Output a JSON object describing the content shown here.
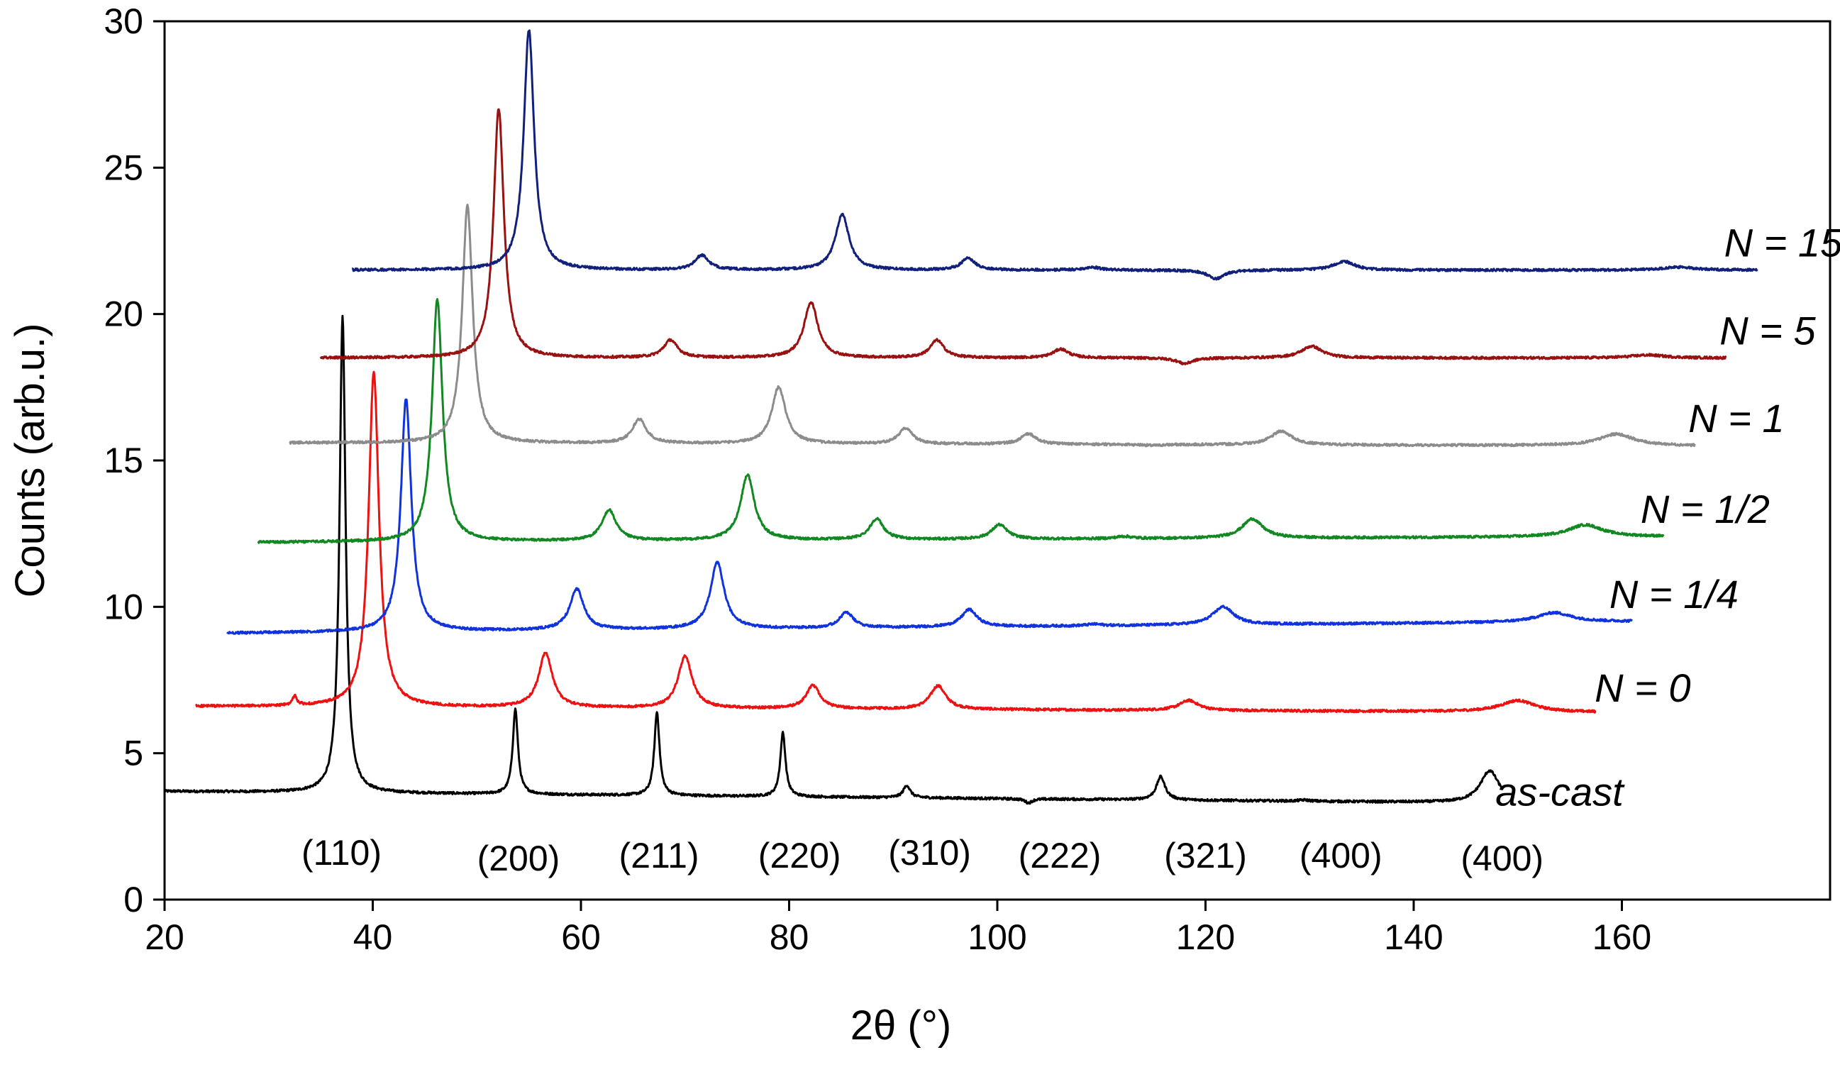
{
  "chart_data": {
    "type": "line",
    "title": "",
    "xlabel": "2θ (°)",
    "ylabel": "Counts (arb.u.)",
    "xlim": [
      20,
      180
    ],
    "ylim": [
      0,
      30
    ],
    "xticks": [
      20,
      40,
      60,
      80,
      100,
      120,
      140,
      160
    ],
    "xtick_labels": [
      "20",
      "40",
      "60",
      "80",
      "100",
      "120",
      "140",
      "160"
    ],
    "yticks": [
      0,
      5,
      10,
      15,
      20,
      25,
      30
    ],
    "ytick_labels": [
      "0",
      "5",
      "10",
      "15",
      "20",
      "25",
      "30"
    ],
    "grid": false,
    "annotations": [
      {
        "text": "(110)",
        "x": 37,
        "y": 1.6
      },
      {
        "text": "(200)",
        "x": 54,
        "y": 1.4
      },
      {
        "text": "(211)",
        "x": 67.5,
        "y": 1.5
      },
      {
        "text": "(220)",
        "x": 81,
        "y": 1.5
      },
      {
        "text": "(310)",
        "x": 93.5,
        "y": 1.6
      },
      {
        "text": "(222)",
        "x": 106,
        "y": 1.5
      },
      {
        "text": "(321)",
        "x": 120,
        "y": 1.5
      },
      {
        "text": "(400)",
        "x": 133,
        "y": 1.5
      },
      {
        "text": "(400)",
        "x": 148.5,
        "y": 1.4
      }
    ],
    "series": [
      {
        "name": "as-cast",
        "color": "#000000",
        "x_start": 20,
        "x_end": 148.5,
        "base_start": 3.7,
        "base_end": 3.3,
        "label_x": 154,
        "label_y": 3.65,
        "peaks": [
          {
            "x": 37.1,
            "y": 19.9,
            "w": 0.35
          },
          {
            "x": 53.7,
            "y": 6.5,
            "w": 0.3
          },
          {
            "x": 67.3,
            "y": 6.4,
            "w": 0.3
          },
          {
            "x": 79.4,
            "y": 5.7,
            "w": 0.3
          },
          {
            "x": 91.3,
            "y": 3.9,
            "w": 0.4
          },
          {
            "x": 103.0,
            "y": 3.3,
            "w": 0.4
          },
          {
            "x": 115.7,
            "y": 4.2,
            "w": 0.5
          },
          {
            "x": 129.5,
            "y": 3.4,
            "w": 0.6
          },
          {
            "x": 147.3,
            "y": 4.4,
            "w": 1.1
          }
        ]
      },
      {
        "name": "N = 0",
        "color": "#ee1111",
        "x_start": 23,
        "x_end": 157.5,
        "base_start": 6.6,
        "base_end": 6.4,
        "label_x": 162,
        "label_y": 7.2,
        "peaks": [
          {
            "x": 32.5,
            "y": 6.9,
            "w": 0.25
          },
          {
            "x": 40.1,
            "y": 18.0,
            "w": 0.6
          },
          {
            "x": 56.6,
            "y": 8.4,
            "w": 0.8
          },
          {
            "x": 70.0,
            "y": 8.3,
            "w": 0.8
          },
          {
            "x": 82.3,
            "y": 7.3,
            "w": 0.8
          },
          {
            "x": 94.3,
            "y": 7.3,
            "w": 0.9
          },
          {
            "x": 118.4,
            "y": 6.8,
            "w": 1.1
          },
          {
            "x": 150.0,
            "y": 6.8,
            "w": 2.0
          }
        ]
      },
      {
        "name": "N = 1/4",
        "color": "#1133dd",
        "x_start": 26,
        "x_end": 161,
        "base_start": 9.1,
        "base_end": 9.5,
        "label_x": 165,
        "label_y": 10.4,
        "peaks": [
          {
            "x": 43.2,
            "y": 17.1,
            "w": 0.6
          },
          {
            "x": 59.6,
            "y": 10.6,
            "w": 0.8
          },
          {
            "x": 73.1,
            "y": 11.5,
            "w": 0.8
          },
          {
            "x": 85.5,
            "y": 9.8,
            "w": 0.8
          },
          {
            "x": 97.3,
            "y": 9.9,
            "w": 0.9
          },
          {
            "x": 109.3,
            "y": 9.4,
            "w": 0.9
          },
          {
            "x": 121.7,
            "y": 10.0,
            "w": 1.2
          },
          {
            "x": 153.5,
            "y": 9.8,
            "w": 2.0
          }
        ]
      },
      {
        "name": "N = 1/2",
        "color": "#118822",
        "x_start": 29,
        "x_end": 164,
        "base_start": 12.2,
        "base_end": 12.4,
        "label_x": 168,
        "label_y": 13.3,
        "peaks": [
          {
            "x": 46.2,
            "y": 20.5,
            "w": 0.6
          },
          {
            "x": 62.7,
            "y": 13.3,
            "w": 0.8
          },
          {
            "x": 76.0,
            "y": 14.5,
            "w": 0.8
          },
          {
            "x": 88.4,
            "y": 13.0,
            "w": 0.8
          },
          {
            "x": 100.2,
            "y": 12.8,
            "w": 0.9
          },
          {
            "x": 112.2,
            "y": 12.4,
            "w": 0.9
          },
          {
            "x": 124.5,
            "y": 13.0,
            "w": 1.2
          },
          {
            "x": 156.5,
            "y": 12.8,
            "w": 2.0
          }
        ]
      },
      {
        "name": "N = 1",
        "color": "#8c8c8c",
        "x_start": 32,
        "x_end": 167,
        "base_start": 15.6,
        "base_end": 15.5,
        "label_x": 171,
        "label_y": 16.4,
        "peaks": [
          {
            "x": 49.1,
            "y": 23.7,
            "w": 0.6
          },
          {
            "x": 65.6,
            "y": 16.4,
            "w": 0.8
          },
          {
            "x": 79.0,
            "y": 17.5,
            "w": 0.8
          },
          {
            "x": 91.2,
            "y": 16.1,
            "w": 0.8
          },
          {
            "x": 103.0,
            "y": 15.9,
            "w": 0.9
          },
          {
            "x": 115.0,
            "y": 15.5,
            "w": 0.9
          },
          {
            "x": 127.3,
            "y": 16.0,
            "w": 1.2
          },
          {
            "x": 159.5,
            "y": 15.9,
            "w": 2.0
          }
        ]
      },
      {
        "name": "N = 5",
        "color": "#991111",
        "x_start": 35,
        "x_end": 170,
        "base_start": 18.5,
        "base_end": 18.5,
        "label_x": 174,
        "label_y": 19.4,
        "peaks": [
          {
            "x": 52.1,
            "y": 27.0,
            "w": 0.6
          },
          {
            "x": 68.6,
            "y": 19.1,
            "w": 0.8
          },
          {
            "x": 82.1,
            "y": 20.4,
            "w": 0.8
          },
          {
            "x": 94.2,
            "y": 19.1,
            "w": 0.8
          },
          {
            "x": 106.1,
            "y": 18.8,
            "w": 0.9
          },
          {
            "x": 118.0,
            "y": 18.3,
            "w": 0.9
          },
          {
            "x": 130.2,
            "y": 18.9,
            "w": 1.2
          },
          {
            "x": 162.5,
            "y": 18.6,
            "w": 2.0
          }
        ]
      },
      {
        "name": "N = 15",
        "color": "#11207a",
        "x_start": 38,
        "x_end": 173,
        "base_start": 21.5,
        "base_end": 21.5,
        "label_x": 175.5,
        "label_y": 22.4,
        "peaks": [
          {
            "x": 55.0,
            "y": 29.7,
            "w": 0.6
          },
          {
            "x": 71.6,
            "y": 22.0,
            "w": 0.8
          },
          {
            "x": 85.1,
            "y": 23.4,
            "w": 0.8
          },
          {
            "x": 97.2,
            "y": 21.9,
            "w": 0.8
          },
          {
            "x": 109.1,
            "y": 21.6,
            "w": 0.9
          },
          {
            "x": 121.0,
            "y": 21.2,
            "w": 0.9
          },
          {
            "x": 133.3,
            "y": 21.8,
            "w": 1.2
          },
          {
            "x": 165.5,
            "y": 21.6,
            "w": 2.0
          }
        ]
      }
    ]
  }
}
